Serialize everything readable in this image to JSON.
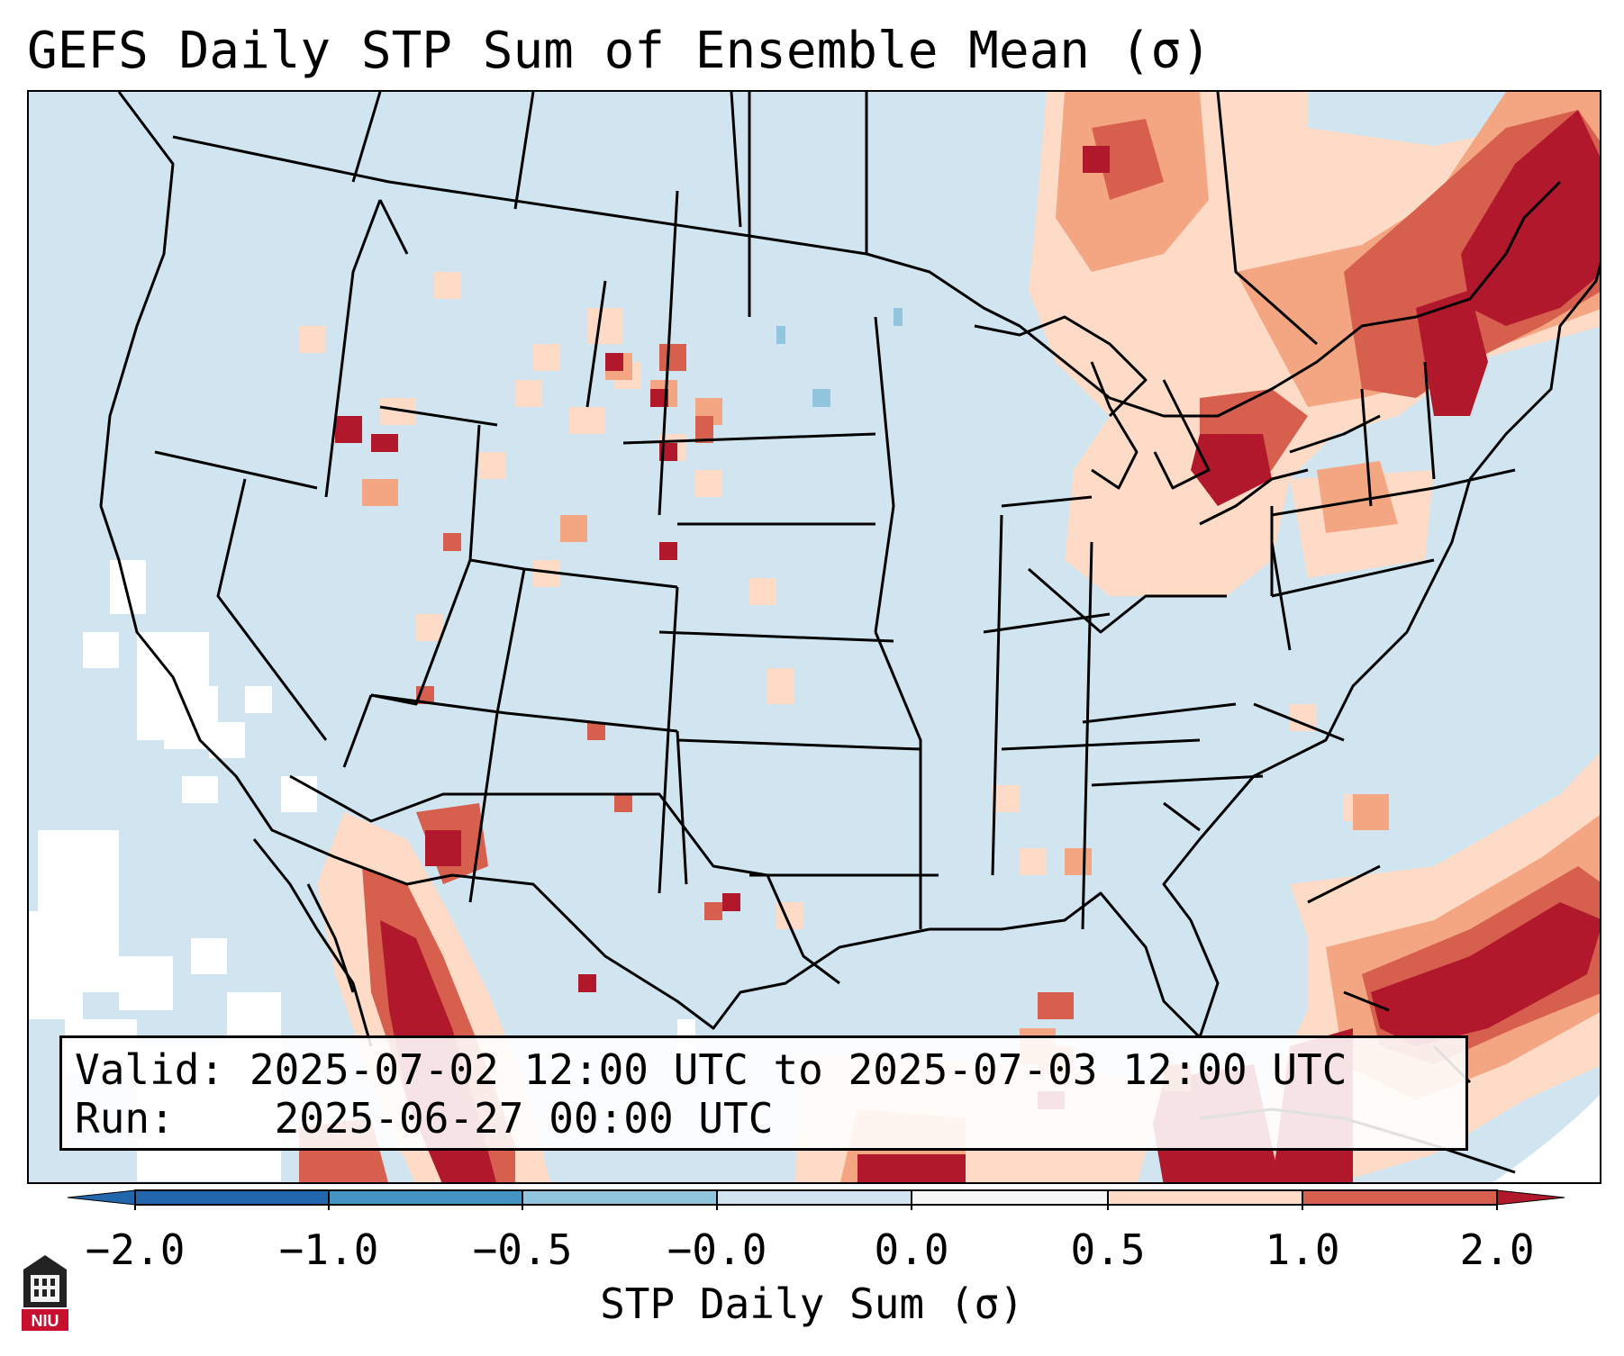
{
  "title": "GEFS Daily STP Sum of Ensemble Mean (σ)",
  "info": {
    "valid_label": "Valid:",
    "valid_value": "2025-07-02 12:00 UTC to 2025-07-03 12:00 UTC",
    "run_label": "Run:",
    "run_value": "2025-06-27 00:00 UTC"
  },
  "colorbar": {
    "label": "STP Daily Sum (σ)",
    "ticks": [
      "−2.0",
      "−1.0",
      "−0.5",
      "−0.0",
      "0.0",
      "0.5",
      "1.0",
      "2.0"
    ],
    "colors": [
      "#2166ac",
      "#4393c3",
      "#92c5de",
      "#d1e5f0",
      "#f7f7f7",
      "#fddbc7",
      "#f4a582",
      "#d6604d",
      "#b2182b"
    ],
    "extend": "both"
  },
  "map": {
    "background_value_color": "#d1e5f0",
    "region": "Contiguous United States, northern Mexico, southern Canada",
    "highlights": [
      {
        "area": "Southeastern Canada / Northeast US",
        "level": "high"
      },
      {
        "area": "Atlantic east of Florida",
        "level": "high"
      },
      {
        "area": "Western Mexico",
        "level": "high"
      },
      {
        "area": "Great Lakes region",
        "level": "moderate"
      }
    ]
  },
  "logo": {
    "text": "NIU"
  }
}
